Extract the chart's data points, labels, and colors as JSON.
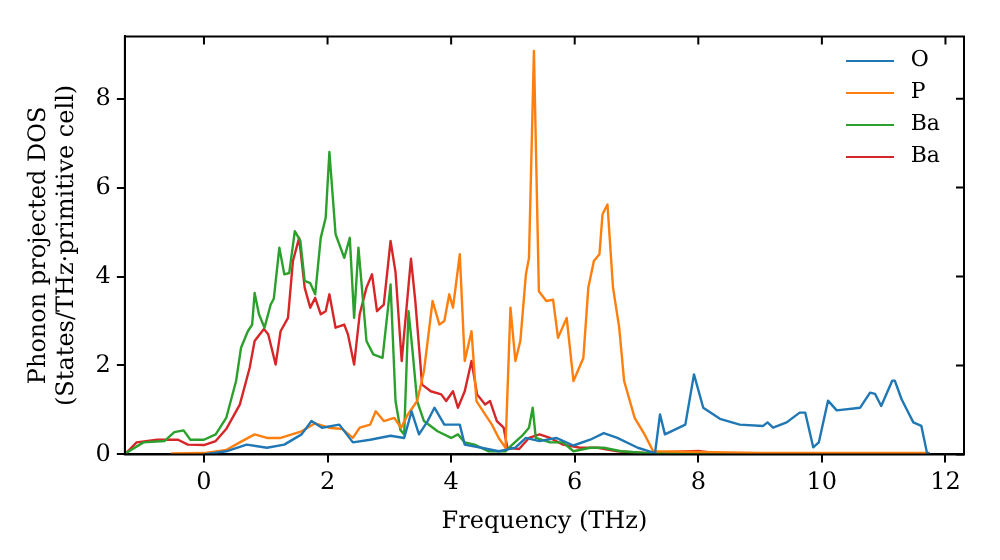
{
  "chart_data": {
    "type": "line",
    "xlabel": "Frequency (THz)",
    "ylabel": "Phonon projected DOS\n(States/THz·primitive cell)",
    "xlim": [
      -1.28,
      12.3
    ],
    "ylim": [
      0,
      9.4
    ],
    "xticks": [
      0,
      2,
      4,
      6,
      8,
      10,
      12
    ],
    "yticks": [
      0,
      2,
      4,
      6,
      8
    ],
    "grid": false,
    "legend": "top right",
    "marker": "none",
    "line_style": "solid",
    "series": [
      {
        "name": "O",
        "color": "#1f77b4",
        "x": [
          0,
          0.36,
          0.69,
          1.02,
          1.3,
          1.58,
          1.74,
          1.91,
          2.19,
          2.41,
          2.69,
          3.02,
          3.24,
          3.36,
          3.48,
          3.62,
          3.73,
          3.89,
          4.14,
          4.22,
          4.49,
          4.77,
          5.04,
          5.21,
          5.43,
          5.7,
          5.98,
          6.25,
          6.47,
          6.69,
          7.02,
          7.3,
          7.38,
          7.46,
          7.79,
          7.93,
          8.08,
          8.35,
          8.67,
          9.05,
          9.12,
          9.21,
          9.43,
          9.64,
          9.73,
          9.86,
          9.95,
          10.1,
          10.24,
          10.62,
          10.78,
          10.86,
          10.96,
          11.14,
          11.18,
          11.29,
          11.37,
          11.48,
          11.61,
          11.7,
          11.75
        ],
        "values": [
          0,
          0.07,
          0.22,
          0.15,
          0.22,
          0.45,
          0.75,
          0.6,
          0.67,
          0.27,
          0.33,
          0.42,
          0.37,
          0.97,
          0.45,
          0.75,
          1.05,
          0.67,
          0.67,
          0.22,
          0.15,
          0.07,
          0.15,
          0.37,
          0.3,
          0.37,
          0.2,
          0.33,
          0.48,
          0.37,
          0.15,
          0.03,
          0.9,
          0.45,
          0.67,
          1.8,
          1.05,
          0.8,
          0.67,
          0.64,
          0.72,
          0.6,
          0.72,
          0.94,
          0.94,
          0.16,
          0.27,
          1.21,
          0.99,
          1.05,
          1.39,
          1.36,
          1.09,
          1.66,
          1.66,
          1.24,
          1.02,
          0.72,
          0.64,
          0.04,
          0
        ]
      },
      {
        "name": "P",
        "color": "#ff7f0e",
        "x": [
          -0.53,
          0,
          0.36,
          0.58,
          0.82,
          1.02,
          1.24,
          1.58,
          1.8,
          2.02,
          2.24,
          2.41,
          2.52,
          2.69,
          2.78,
          2.91,
          3.08,
          3.19,
          3.3,
          3.45,
          3.56,
          3.7,
          3.81,
          3.89,
          3.97,
          4.03,
          4.14,
          4.22,
          4.33,
          4.41,
          4.55,
          4.66,
          4.77,
          4.88,
          4.96,
          5.04,
          5.12,
          5.21,
          5.26,
          5.34,
          5.42,
          5.54,
          5.65,
          5.73,
          5.87,
          5.98,
          6.14,
          6.22,
          6.31,
          6.4,
          6.45,
          6.53,
          6.62,
          6.72,
          6.8,
          6.97,
          7.13,
          7.27,
          9,
          11.75
        ],
        "values": [
          0.02,
          0.03,
          0.1,
          0.27,
          0.45,
          0.37,
          0.37,
          0.52,
          0.7,
          0.6,
          0.57,
          0.37,
          0.6,
          0.67,
          0.97,
          0.75,
          0.82,
          0.6,
          0.9,
          1.2,
          1.87,
          3.45,
          2.92,
          3.0,
          3.6,
          3.3,
          4.5,
          2.1,
          2.77,
          1.2,
          0.9,
          0.67,
          0.37,
          0.15,
          3.3,
          2.1,
          2.55,
          4.05,
          4.42,
          9.07,
          3.67,
          3.45,
          3.48,
          2.62,
          3.07,
          1.65,
          2.17,
          3.75,
          4.35,
          4.5,
          5.4,
          5.62,
          3.75,
          2.85,
          1.65,
          0.82,
          0.45,
          0.07,
          0.03,
          0.03
        ]
      },
      {
        "name": "Ba",
        "color": "#2ca02c",
        "x": [
          -1.26,
          -0.98,
          -0.64,
          -0.48,
          -0.33,
          -0.22,
          0,
          0.19,
          0.36,
          0.52,
          0.6,
          0.71,
          0.78,
          0.82,
          0.89,
          0.98,
          1.08,
          1.13,
          1.22,
          1.3,
          1.38,
          1.47,
          1.56,
          1.63,
          1.72,
          1.8,
          1.89,
          1.97,
          2.03,
          2.13,
          2.27,
          2.36,
          2.43,
          2.5,
          2.63,
          2.74,
          2.89,
          3.02,
          3.1,
          3.18,
          3.24,
          3.31,
          3.37,
          3.45,
          3.56,
          3.78,
          4.0,
          4.11,
          4.22,
          4.38,
          4.6,
          4.88,
          4.99,
          5.15,
          5.26,
          5.32,
          5.37,
          5.6,
          5.81,
          5.98,
          6.25,
          6.47,
          6.75,
          7.13,
          8.23,
          11.75
        ],
        "values": [
          0.03,
          0.27,
          0.3,
          0.5,
          0.54,
          0.33,
          0.33,
          0.45,
          0.82,
          1.65,
          2.4,
          2.77,
          2.92,
          3.63,
          3.15,
          2.85,
          3.37,
          3.5,
          4.65,
          4.05,
          4.08,
          5.02,
          4.8,
          3.9,
          3.85,
          3.6,
          4.87,
          5.32,
          6.8,
          4.95,
          4.42,
          4.87,
          3.07,
          4.65,
          2.55,
          2.25,
          2.17,
          3.82,
          1.2,
          0.55,
          0.45,
          3.22,
          2.4,
          1.2,
          0.75,
          0.52,
          0.37,
          0.45,
          0.27,
          0.22,
          0.07,
          0.07,
          0.22,
          0.42,
          0.6,
          1.05,
          0.37,
          0.27,
          0.27,
          0.07,
          0.15,
          0.15,
          0.07,
          0.03,
          0.02,
          0.02
        ]
      },
      {
        "name": "Ba",
        "color": "#d62728",
        "x": [
          -1.26,
          -1.09,
          -0.76,
          -0.42,
          -0.26,
          0,
          0.19,
          0.36,
          0.58,
          0.74,
          0.82,
          0.97,
          1.04,
          1.16,
          1.24,
          1.36,
          1.44,
          1.54,
          1.63,
          1.72,
          1.8,
          1.89,
          1.97,
          2.03,
          2.13,
          2.27,
          2.33,
          2.43,
          2.52,
          2.63,
          2.72,
          2.8,
          2.91,
          3.02,
          3.1,
          3.2,
          3.35,
          3.42,
          3.53,
          3.67,
          3.84,
          3.92,
          4.03,
          4.11,
          4.22,
          4.33,
          4.42,
          4.55,
          4.63,
          4.74,
          4.85,
          4.91,
          5.1,
          5.26,
          5.43,
          5.6,
          5.81,
          6.09,
          6.37,
          6.69,
          7.13,
          8.0,
          8.3,
          11.75
        ],
        "values": [
          0.03,
          0.27,
          0.33,
          0.33,
          0.22,
          0.21,
          0.3,
          0.57,
          1.12,
          1.95,
          2.55,
          2.82,
          2.7,
          2.02,
          2.77,
          3.07,
          4.35,
          4.87,
          3.75,
          3.3,
          3.52,
          3.15,
          3.22,
          3.6,
          2.85,
          2.92,
          2.7,
          2.02,
          3.15,
          3.75,
          4.05,
          3.22,
          3.37,
          4.8,
          4.1,
          2.1,
          4.4,
          3.45,
          1.57,
          1.42,
          1.35,
          1.2,
          1.42,
          1.05,
          1.42,
          2.1,
          1.35,
          1.12,
          1.2,
          0.75,
          0.6,
          0.15,
          0.12,
          0.37,
          0.45,
          0.37,
          0.22,
          0.15,
          0.15,
          0.07,
          0.03,
          0.08,
          0.02,
          0.02
        ]
      }
    ]
  }
}
